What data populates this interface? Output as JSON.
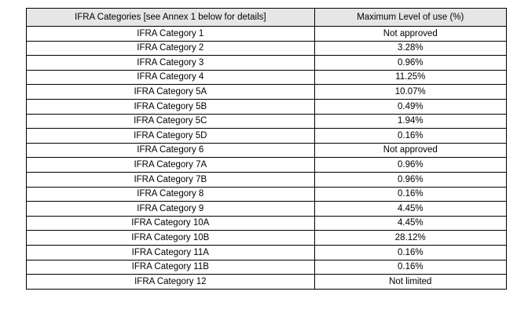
{
  "table": {
    "headers": [
      "IFRA Categories [see Annex 1 below for details]",
      "Maximum Level of use (%)"
    ],
    "rows": [
      [
        "IFRA Category 1",
        "Not approved"
      ],
      [
        "IFRA Category 2",
        "3.28%"
      ],
      [
        "IFRA Category 3",
        "0.96%"
      ],
      [
        "IFRA Category 4",
        "11.25%"
      ],
      [
        "IFRA Category 5A",
        "10.07%"
      ],
      [
        "IFRA Category 5B",
        "0.49%"
      ],
      [
        "IFRA Category 5C",
        "1.94%"
      ],
      [
        "IFRA Category 5D",
        "0.16%"
      ],
      [
        "IFRA Category 6",
        "Not approved"
      ],
      [
        "IFRA Category 7A",
        "0.96%"
      ],
      [
        "IFRA Category 7B",
        "0.96%"
      ],
      [
        "IFRA Category 8",
        "0.16%"
      ],
      [
        "IFRA Category 9",
        "4.45%"
      ],
      [
        "IFRA Category 10A",
        "4.45%"
      ],
      [
        "IFRA Category 10B",
        "28.12%"
      ],
      [
        "IFRA Category 11A",
        "0.16%"
      ],
      [
        "IFRA Category 11B",
        "0.16%"
      ],
      [
        "IFRA Category 12",
        "Not limited"
      ]
    ],
    "colors": {
      "header_bg": "#e6e6e6",
      "border": "#000000",
      "text": "#000000",
      "row_bg": "#ffffff",
      "page_bg": "#ffffff"
    }
  }
}
